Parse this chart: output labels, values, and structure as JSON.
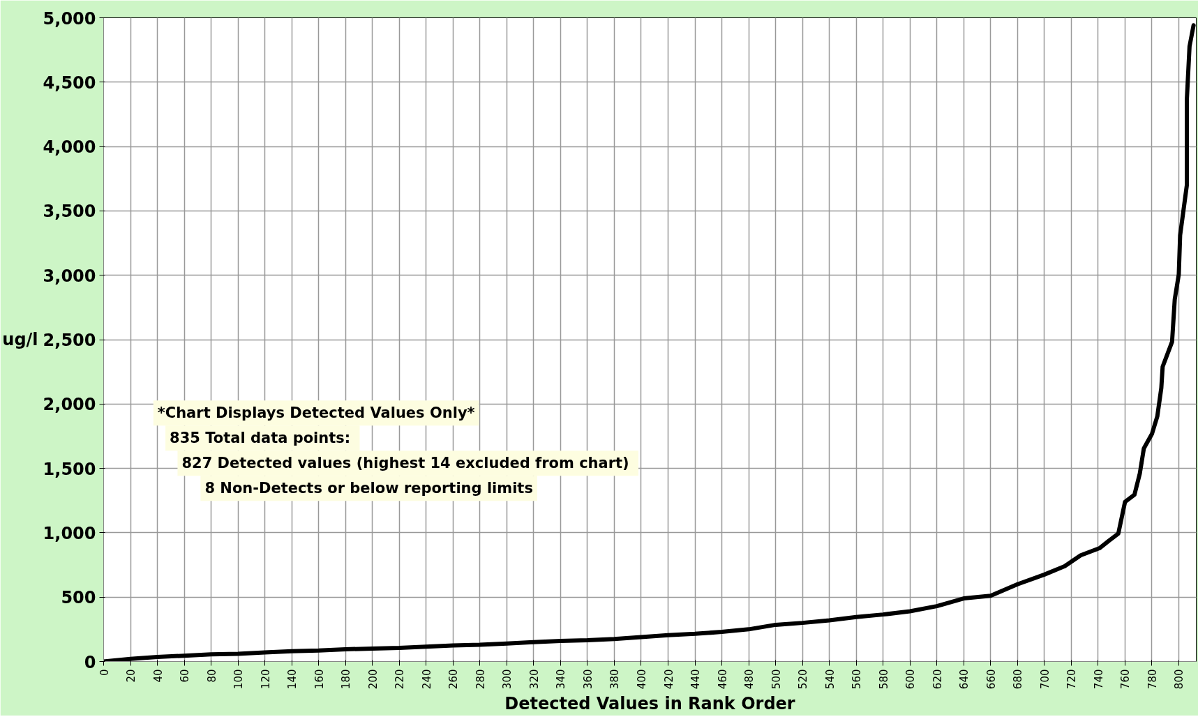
{
  "chart_data": {
    "type": "line",
    "xlabel": "Detected Values in Rank Order",
    "ylabel": "ug/l",
    "annotations": [
      "*Chart Displays Detected Values Only*",
      "835  Total data points:",
      "827  Detected values (highest 14 excluded from chart)",
      "8 Non-Detects or below reporting limits"
    ],
    "xlim": [
      0,
      813
    ],
    "ylim": [
      0,
      5000
    ],
    "xticks": [
      0,
      20,
      40,
      60,
      80,
      100,
      120,
      140,
      160,
      180,
      200,
      220,
      240,
      260,
      280,
      300,
      320,
      340,
      360,
      380,
      400,
      420,
      440,
      460,
      480,
      500,
      520,
      540,
      560,
      580,
      600,
      620,
      640,
      660,
      680,
      700,
      720,
      740,
      760,
      780,
      800
    ],
    "yticks": [
      0,
      500,
      {
        "value": 1000,
        "label": "1,000"
      },
      {
        "value": 1500,
        "label": "1,500"
      },
      {
        "value": 2000,
        "label": "2,000"
      },
      {
        "value": 2500,
        "label": "2,500"
      },
      {
        "value": 3000,
        "label": "3,000"
      },
      {
        "value": 3500,
        "label": "3,500"
      },
      {
        "value": 4000,
        "label": "4,000"
      },
      {
        "value": 4500,
        "label": "4,500"
      },
      {
        "value": 5000,
        "label": "5,000"
      }
    ],
    "grid": true,
    "marker": "none",
    "line_style": "solid",
    "series": [
      {
        "color": "#000000",
        "x": [
          0,
          20,
          40,
          60,
          80,
          100,
          120,
          140,
          160,
          180,
          200,
          220,
          240,
          260,
          280,
          300,
          320,
          340,
          360,
          380,
          400,
          420,
          440,
          460,
          480,
          500,
          520,
          540,
          560,
          580,
          600,
          620,
          640,
          660,
          680,
          700,
          715,
          727,
          741,
          748,
          755,
          760,
          767,
          771,
          774,
          780,
          784,
          787,
          788,
          795,
          797,
          800,
          801,
          806,
          806,
          808,
          811
        ],
        "values": [
          0,
          20,
          35,
          45,
          55,
          60,
          70,
          80,
          85,
          95,
          100,
          105,
          115,
          125,
          130,
          140,
          150,
          160,
          165,
          175,
          190,
          205,
          215,
          230,
          250,
          285,
          300,
          320,
          345,
          365,
          390,
          430,
          490,
          510,
          600,
          675,
          740,
          825,
          880,
          938,
          993,
          1240,
          1295,
          1460,
          1655,
          1767,
          1903,
          2125,
          2290,
          2483,
          2813,
          3006,
          3310,
          3700,
          4365,
          4778,
          4942
        ]
      }
    ]
  }
}
